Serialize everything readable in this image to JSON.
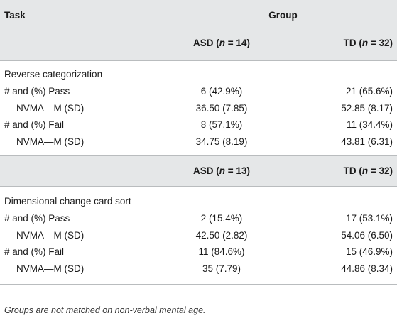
{
  "header": {
    "task_label": "Task",
    "group_label": "Group"
  },
  "section1": {
    "asd_header": "ASD (",
    "asd_n": "n",
    "asd_count": " = 14)",
    "td_header": "TD (",
    "td_n": "n",
    "td_count": " = 32)",
    "title": "Reverse categorization",
    "rows": [
      {
        "label": "# and (%) Pass",
        "asd": "6 (42.9%)",
        "td": "21 (65.6%)"
      },
      {
        "label": "NVMA—M (SD)",
        "asd": "36.50 (7.85)",
        "td": "52.85 (8.17)"
      },
      {
        "label": "# and (%) Fail",
        "asd": "8 (57.1%)",
        "td": "11 (34.4%)"
      },
      {
        "label": "NVMA—M (SD)",
        "asd": "34.75 (8.19)",
        "td": "43.81 (6.31)"
      }
    ]
  },
  "section2": {
    "asd_header": "ASD (",
    "asd_n": "n",
    "asd_count": " = 13)",
    "td_header": "TD (",
    "td_n": "n",
    "td_count": " = 32)",
    "title": "Dimensional change card sort",
    "rows": [
      {
        "label": "# and (%) Pass",
        "asd": "2 (15.4%)",
        "td": "17 (53.1%)"
      },
      {
        "label": "NVMA—M (SD)",
        "asd": "42.50 (2.82)",
        "td": "54.06 (6.50)"
      },
      {
        "label": "# and (%) Fail",
        "asd": "11 (84.6%)",
        "td": "15 (46.9%)"
      },
      {
        "label": "NVMA—M (SD)",
        "asd": "35 (7.79)",
        "td": "44.86 (8.34)"
      }
    ]
  },
  "footnote": "Groups are not matched on non-verbal mental age."
}
